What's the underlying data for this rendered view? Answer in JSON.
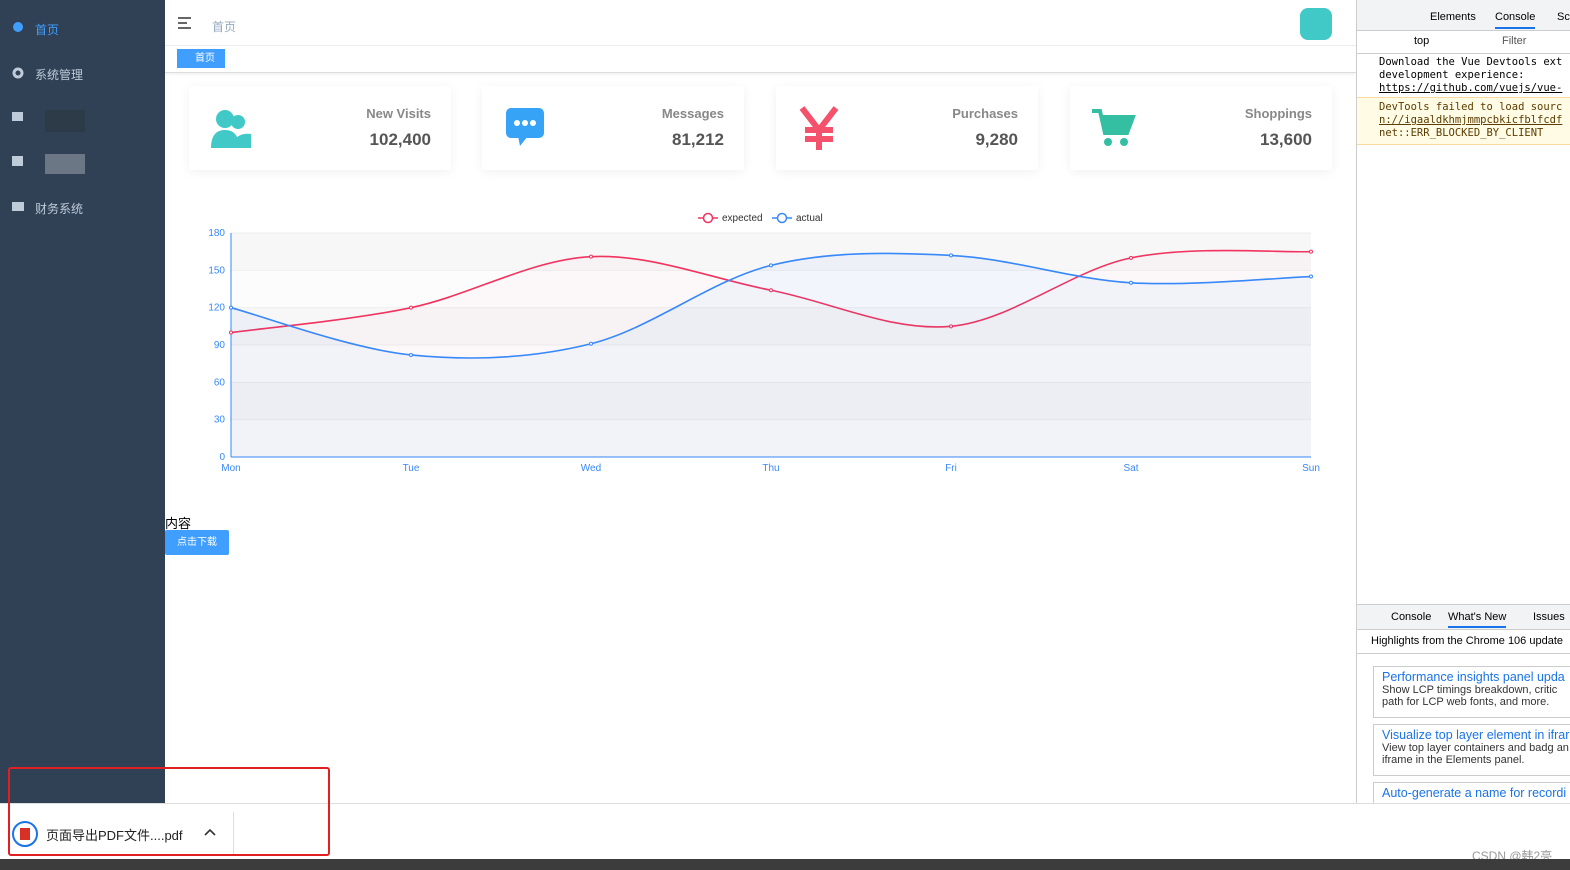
{
  "sidebar": {
    "items": [
      "首页",
      "系统管理",
      "财务系统"
    ]
  },
  "navbar": {
    "breadcrumb": "首页"
  },
  "tabs": [
    "首页"
  ],
  "cards": [
    {
      "label": "New Visits",
      "value": "102,400"
    },
    {
      "label": "Messages",
      "value": "81,212"
    },
    {
      "label": "Purchases",
      "value": "9,280"
    },
    {
      "label": "Shoppings",
      "value": "13,600"
    }
  ],
  "chart_data": {
    "type": "line",
    "categories": [
      "Mon",
      "Tue",
      "Wed",
      "Thu",
      "Fri",
      "Sat",
      "Sun"
    ],
    "series": [
      {
        "name": "expected",
        "color": "#f2335f",
        "values": [
          100,
          120,
          161,
          134,
          105,
          160,
          165
        ]
      },
      {
        "name": "actual",
        "color": "#3888fa",
        "values": [
          120,
          82,
          91,
          154,
          162,
          140,
          145
        ]
      }
    ],
    "ylim": [
      0,
      180
    ],
    "yticks": [
      0,
      30,
      60,
      90,
      120,
      150,
      180
    ],
    "grid": true,
    "legend": "top"
  },
  "content": {
    "text": "内容",
    "button": "点击下载"
  },
  "devtools": {
    "tabs": [
      "Elements",
      "Console",
      "Sc"
    ],
    "context": "top",
    "filter": "Filter",
    "messages": [
      "Download the Vue Devtools ext",
      "development experience:",
      "https://github.com/vuejs/vue-",
      "DevTools failed to load sourc",
      "n://igaaldkhmjmmpcbkicfblfcdf",
      "net::ERR_BLOCKED_BY_CLIENT"
    ],
    "drawer_tabs": [
      "Console",
      "What's New",
      "Issues"
    ],
    "highlights": "Highlights from the Chrome 106 update",
    "items": [
      {
        "title": "Performance insights panel upda",
        "desc": "Show LCP timings breakdown, critic path for LCP web fonts, and more."
      },
      {
        "title": "Visualize top layer element in ifrar",
        "desc": "View top layer containers and badg an iframe in the Elements panel."
      },
      {
        "title": "Auto-generate a name for recordi",
        "desc": ""
      }
    ]
  },
  "download": {
    "filename": "页面导出PDF文件....pdf"
  },
  "watermark": "CSDN @韩2亮"
}
